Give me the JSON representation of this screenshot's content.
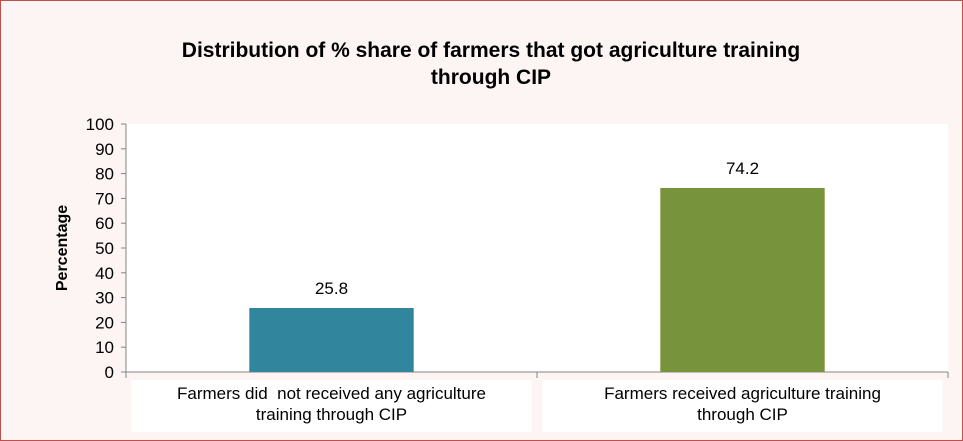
{
  "chart_data": {
    "type": "bar",
    "title_lines": [
      "Distribution of % share of farmers that got agriculture training",
      "through CIP"
    ],
    "ylabel": "Percentage",
    "ylim": [
      0,
      100
    ],
    "yticks": [
      0,
      10,
      20,
      30,
      40,
      50,
      60,
      70,
      80,
      90,
      100
    ],
    "categories": [
      {
        "lines": [
          "Farmers did  not received any agriculture",
          "training through CIP"
        ]
      },
      {
        "lines": [
          "Farmers received agriculture training",
          "through CIP"
        ]
      }
    ],
    "values": [
      25.8,
      74.2
    ],
    "data_labels": [
      "25.8",
      "74.2"
    ],
    "colors": [
      "#31859c",
      "#77933c"
    ],
    "grid": false,
    "legend": "none"
  }
}
